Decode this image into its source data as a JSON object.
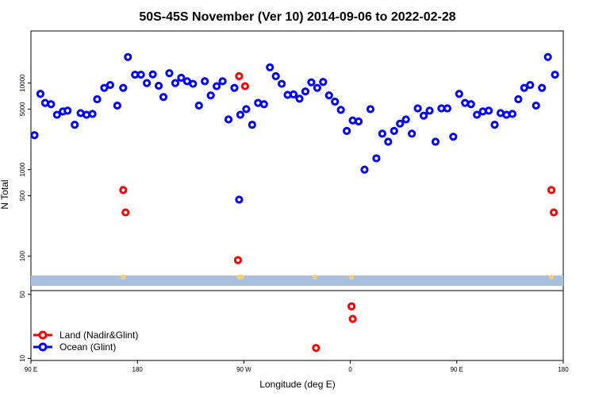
{
  "chart_data": {
    "type": "scatter",
    "title": "50S-45S November (Ver 10)   2014-09-06 to 2022-02-28",
    "xlabel": "Longitude (deg E)",
    "ylabel": "N Total",
    "x_ticks": [
      {
        "value": 90,
        "label": "90 E"
      },
      {
        "value": 180,
        "label": "180"
      },
      {
        "value": 270,
        "label": "90 W"
      },
      {
        "value": 360,
        "label": "0"
      },
      {
        "value": 450,
        "label": "90 E"
      },
      {
        "value": 540,
        "label": "180"
      }
    ],
    "y_ticks_upper": [
      100,
      500,
      1000,
      5000,
      10000
    ],
    "y_ticks_lower": [
      10,
      50
    ],
    "xlim": [
      90,
      540
    ],
    "ylim_upper": [
      40,
      40000
    ],
    "ylim_lower": [
      9.5,
      55
    ],
    "y_scale": "log",
    "legend_position": "bottom-left",
    "series": [
      {
        "name": "Land (Nadir&Glint)",
        "color": "#ff0000",
        "points": [
          [
            168,
            580
          ],
          [
            170,
            320
          ],
          [
            265,
            90
          ],
          [
            266,
            12000
          ],
          [
            271,
            9200
          ],
          [
            530,
            580
          ],
          [
            532,
            320
          ],
          [
            331,
            13
          ],
          [
            361,
            37
          ],
          [
            362,
            27
          ]
        ]
      },
      {
        "name": "Ocean (Glint)",
        "color": "#0000ff",
        "points": [
          [
            93,
            2500
          ],
          [
            98,
            7500
          ],
          [
            102,
            5900
          ],
          [
            107,
            5700
          ],
          [
            112,
            4300
          ],
          [
            117,
            4700
          ],
          [
            121,
            4800
          ],
          [
            127,
            3300
          ],
          [
            132,
            4500
          ],
          [
            137,
            4300
          ],
          [
            142,
            4400
          ],
          [
            146,
            6500
          ],
          [
            152,
            8800
          ],
          [
            157,
            9500
          ],
          [
            163,
            5500
          ],
          [
            168,
            8800
          ],
          [
            172,
            20000
          ],
          [
            178,
            12500
          ],
          [
            183,
            12500
          ],
          [
            188,
            10000
          ],
          [
            193,
            12600
          ],
          [
            198,
            9300
          ],
          [
            202,
            6900
          ],
          [
            207,
            13000
          ],
          [
            212,
            10000
          ],
          [
            217,
            11500
          ],
          [
            222,
            10500
          ],
          [
            227,
            9800
          ],
          [
            232,
            5500
          ],
          [
            237,
            10500
          ],
          [
            242,
            7200
          ],
          [
            247,
            9200
          ],
          [
            252,
            10500
          ],
          [
            257,
            3800
          ],
          [
            262,
            8800
          ],
          [
            267,
            4300
          ],
          [
            272,
            5000
          ],
          [
            277,
            3300
          ],
          [
            282,
            5900
          ],
          [
            266,
            450
          ],
          [
            287,
            5700
          ],
          [
            292,
            15200
          ],
          [
            297,
            12000
          ],
          [
            302,
            9800
          ],
          [
            307,
            7300
          ],
          [
            312,
            7400
          ],
          [
            317,
            6600
          ],
          [
            322,
            8000
          ],
          [
            327,
            10200
          ],
          [
            332,
            8800
          ],
          [
            337,
            10300
          ],
          [
            342,
            7200
          ],
          [
            347,
            6100
          ],
          [
            352,
            4900
          ],
          [
            357,
            2800
          ],
          [
            362,
            3700
          ],
          [
            367,
            3600
          ],
          [
            372,
            1000
          ],
          [
            377,
            5000
          ],
          [
            382,
            1350
          ],
          [
            387,
            2600
          ],
          [
            392,
            2100
          ],
          [
            397,
            2800
          ],
          [
            402,
            3400
          ],
          [
            407,
            3800
          ],
          [
            412,
            2600
          ],
          [
            417,
            5100
          ],
          [
            422,
            4200
          ],
          [
            427,
            4800
          ],
          [
            432,
            2100
          ],
          [
            437,
            5100
          ],
          [
            442,
            5100
          ],
          [
            447,
            2400
          ],
          [
            452,
            7500
          ],
          [
            457,
            5900
          ],
          [
            462,
            5700
          ],
          [
            467,
            4300
          ],
          [
            472,
            4700
          ],
          [
            477,
            4800
          ],
          [
            482,
            3300
          ],
          [
            487,
            4500
          ],
          [
            492,
            4300
          ],
          [
            497,
            4400
          ],
          [
            502,
            6500
          ],
          [
            507,
            8800
          ],
          [
            512,
            9500
          ],
          [
            517,
            5500
          ],
          [
            522,
            8800
          ],
          [
            527,
            20000
          ],
          [
            533,
            12500
          ]
        ]
      }
    ],
    "band_markers": [
      {
        "x": 168,
        "color": "#ffcc66"
      },
      {
        "x": 266,
        "color": "#ffcc66"
      },
      {
        "x": 268,
        "color": "#ffcc66"
      },
      {
        "x": 330,
        "color": "#ffcc66"
      },
      {
        "x": 361,
        "color": "#ffcc66"
      },
      {
        "x": 530,
        "color": "#ffcc66"
      }
    ],
    "band_color": "#a9bfde"
  }
}
